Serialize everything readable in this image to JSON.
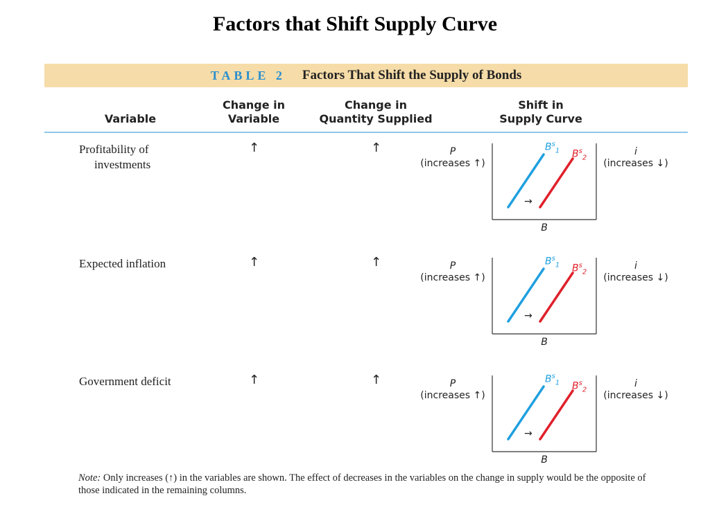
{
  "slide": {
    "title": "Factors that Shift Supply Curve"
  },
  "table": {
    "label": "TABLE 2",
    "caption": "Factors That Shift the Supply of Bonds",
    "headers": {
      "variable": "Variable",
      "change_var_1": "Change in",
      "change_var_2": "Variable",
      "change_qty_1": "Change in",
      "change_qty_2": "Quantity Supplied",
      "shift_1": "Shift in",
      "shift_2": "Supply Curve"
    },
    "rows": [
      {
        "variable_line1": "Profitability of",
        "variable_line2": "investments",
        "change_in_variable": "↑",
        "change_in_quantity": "↑",
        "diagram": {
          "y_axis_label": "P",
          "y_axis_note": "(increases ↑)",
          "x_axis_label": "B",
          "right_label": "i",
          "right_note": "(increases ↓)",
          "curve1": "B",
          "curve1_sup": "s",
          "curve1_sub": "1",
          "curve2": "B",
          "curve2_sup": "s",
          "curve2_sub": "2",
          "shift_arrow": "→"
        }
      },
      {
        "variable_line1": "Expected inflation",
        "variable_line2": "",
        "change_in_variable": "↑",
        "change_in_quantity": "↑",
        "diagram": {
          "y_axis_label": "P",
          "y_axis_note": "(increases ↑)",
          "x_axis_label": "B",
          "right_label": "i",
          "right_note": "(increases ↓)",
          "curve1": "B",
          "curve1_sup": "s",
          "curve1_sub": "1",
          "curve2": "B",
          "curve2_sup": "s",
          "curve2_sub": "2",
          "shift_arrow": "→"
        }
      },
      {
        "variable_line1": "Government deficit",
        "variable_line2": "",
        "change_in_variable": "↑",
        "change_in_quantity": "↑",
        "diagram": {
          "y_axis_label": "P",
          "y_axis_note": "(increases ↑)",
          "x_axis_label": "B",
          "right_label": "i",
          "right_note": "(increases ↓)",
          "curve1": "B",
          "curve1_sup": "s",
          "curve1_sub": "1",
          "curve2": "B",
          "curve2_sup": "s",
          "curve2_sub": "2",
          "shift_arrow": "→"
        }
      }
    ],
    "note_lead": "Note:",
    "note_text": " Only increases (↑) in the variables are shown. The effect of decreases in the variables on the change in supply would be the opposite of those indicated in the remaining columns."
  },
  "colors": {
    "banner": "#f6dca8",
    "table_label": "#2a8fd0",
    "rule": "#8fc6ea",
    "curve1": "#1fa0e0",
    "curve2": "#e0202a"
  }
}
